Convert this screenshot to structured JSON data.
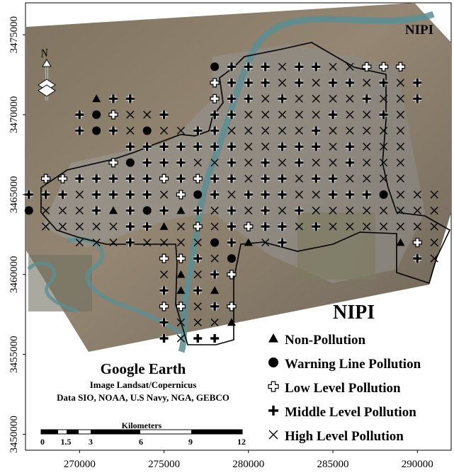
{
  "title_top": "NIPI",
  "legend": {
    "title": "NIPI",
    "items": [
      {
        "symbol": "triangle",
        "label": "Non-Pollution"
      },
      {
        "symbol": "circle",
        "label": "Warning Line Pollution"
      },
      {
        "symbol": "cross-open",
        "label": "Low Level Pollution"
      },
      {
        "symbol": "cross",
        "label": "Middle Level Pollution"
      },
      {
        "symbol": "x",
        "label": "High Level Pollution"
      }
    ]
  },
  "credits": {
    "heading": "Google Earth",
    "line1": "Image Landsat/Copernicus",
    "line2": "Data SIO, NOAA, U.S Navy, NGA, GEBCO"
  },
  "scalebar": {
    "title": "Kilometers",
    "ticks": [
      "0",
      "1.5",
      "3",
      "6",
      "9",
      "12"
    ]
  },
  "north_label": "N",
  "x_ticks": [
    "270000",
    "275000",
    "280000",
    "285000",
    "290000"
  ],
  "y_ticks": [
    "3475000",
    "3470000",
    "3465000",
    "3460000",
    "3455000",
    "3450000"
  ],
  "colors": {
    "symbol": "#000000",
    "symbol_outline": "#ffffff",
    "boundary": "#000000",
    "land": "#8a7c66",
    "urban": "#9c9c9c",
    "river": "#4f7f8a"
  },
  "chart_data": {
    "type": "scatter",
    "note": "sampling points classified by NIPI pollution level",
    "categories": [
      "triangle",
      "circle",
      "cross-open",
      "cross",
      "x"
    ],
    "xlim": [
      266800,
      292000
    ],
    "ylim": [
      3449000,
      3477000
    ],
    "spacing_m": 1000,
    "rows": [
      {
        "y": 3473000,
        "cells": [
          "",
          "",
          "",
          "",
          "",
          "",
          "",
          "",
          "",
          "",
          "",
          "o",
          "+",
          "+",
          "+",
          "x",
          "+",
          "+",
          "x",
          "x",
          "c",
          "c",
          "c",
          "",
          ""
        ]
      },
      {
        "y": 3472000,
        "cells": [
          "",
          "",
          "",
          "",
          "",
          "",
          "",
          "",
          "",
          "",
          "",
          "c",
          "+",
          "+",
          "+",
          "x",
          "+",
          "x",
          "+",
          "+",
          "x",
          "+",
          "x",
          "+",
          ""
        ]
      },
      {
        "y": 3471000,
        "cells": [
          "",
          "",
          "",
          "",
          "t",
          "+",
          "+",
          "",
          "",
          "",
          "",
          "c",
          "+",
          "+",
          "x",
          "+",
          "x",
          "x",
          "x",
          "x",
          "+",
          "x",
          "x",
          "+",
          ""
        ]
      },
      {
        "y": 3470000,
        "cells": [
          "",
          "",
          "",
          "+",
          "o",
          "c",
          "x",
          "x",
          "+",
          "",
          "",
          "+",
          "+",
          "x",
          "x",
          "x",
          "x",
          "x",
          "+",
          "x",
          "x",
          "+",
          "x",
          "",
          ""
        ]
      },
      {
        "y": 3469000,
        "cells": [
          "",
          "",
          "",
          "+",
          "o",
          "+",
          "x",
          "o",
          "x",
          "x",
          "+",
          "+",
          "x",
          "x",
          "x",
          "x",
          "x",
          "+",
          "x",
          "x",
          "x",
          "x",
          "x",
          "",
          ""
        ]
      },
      {
        "y": 3468000,
        "cells": [
          "",
          "",
          "",
          "",
          "",
          "",
          "+",
          "+",
          "+",
          "+",
          "+",
          "+",
          "+",
          "x",
          "x",
          "+",
          "+",
          "+",
          "x",
          "+",
          "x",
          "x",
          "x",
          "",
          ""
        ]
      },
      {
        "y": 3467000,
        "cells": [
          "",
          "",
          "",
          "",
          "",
          "c",
          "o",
          "+",
          "+",
          "+",
          "x",
          "x",
          "+",
          "x",
          "+",
          "x",
          "+",
          "x",
          "x",
          "+",
          "x",
          "x",
          "x",
          "",
          ""
        ]
      },
      {
        "y": 3466000,
        "cells": [
          "",
          "c",
          "c",
          "+",
          "+",
          "+",
          "+",
          "+",
          "c",
          "+",
          "c",
          "+",
          "+",
          "x",
          "+",
          "+",
          "x",
          "+",
          "+",
          "x",
          "x",
          "x",
          "x",
          "",
          ""
        ]
      },
      {
        "y": 3465000,
        "cells": [
          "+",
          "+",
          "+",
          "x",
          "+",
          "+",
          "+",
          "+",
          "x",
          "c",
          "o",
          "+",
          "x",
          "+",
          "+",
          "+",
          "x",
          "x",
          "+",
          "+",
          "+",
          "o",
          "x",
          "x",
          "x"
        ]
      },
      {
        "y": 3464000,
        "cells": [
          "o",
          "x",
          "x",
          "x",
          "+",
          "t",
          "+",
          "o",
          "+",
          "t",
          "+",
          "x",
          "+",
          "x",
          "+",
          "x",
          "+",
          "x",
          "x",
          "x",
          "x",
          "x",
          "x",
          "x",
          "x"
        ]
      },
      {
        "y": 3463000,
        "cells": [
          "",
          "x",
          "x",
          "x",
          "x",
          "x",
          "+",
          "+",
          "t",
          "x",
          "c",
          "x",
          "+",
          "c",
          "+",
          "+",
          "x",
          "+",
          "x",
          "x",
          "x",
          "x",
          "x",
          "x",
          "x"
        ]
      },
      {
        "y": 3462000,
        "cells": [
          "",
          "",
          "",
          "x",
          "x",
          "x",
          "+",
          "x",
          "x",
          "x",
          "x",
          "o",
          "+",
          "t",
          "x",
          "+",
          "",
          "",
          "",
          "",
          "",
          "",
          "t",
          "c",
          "x"
        ]
      },
      {
        "y": 3461000,
        "cells": [
          "",
          "",
          "",
          "",
          "",
          "",
          "",
          "",
          "c",
          "c",
          "+",
          "x",
          "o",
          "",
          "",
          "",
          "",
          "",
          "",
          "",
          "",
          "",
          "",
          "+",
          "x"
        ]
      },
      {
        "y": 3460000,
        "cells": [
          "",
          "",
          "",
          "",
          "",
          "",
          "",
          "",
          "x",
          "t",
          "x",
          "+",
          "c",
          "",
          "",
          "",
          "",
          "",
          "",
          "",
          "",
          "",
          "",
          "",
          ""
        ]
      },
      {
        "y": 3459000,
        "cells": [
          "",
          "",
          "",
          "",
          "",
          "",
          "",
          "",
          "+",
          "t",
          "+",
          "t",
          "",
          "",
          "",
          "",
          "",
          "",
          "",
          "",
          "",
          "",
          "",
          "",
          ""
        ]
      },
      {
        "y": 3458000,
        "cells": [
          "",
          "",
          "",
          "",
          "",
          "",
          "",
          "",
          "c",
          "c",
          "x",
          "+",
          "c",
          "",
          "",
          "",
          "",
          "",
          "",
          "",
          "",
          "",
          "",
          "",
          ""
        ]
      },
      {
        "y": 3457000,
        "cells": [
          "",
          "",
          "",
          "",
          "",
          "",
          "",
          "",
          "+",
          "x",
          "x",
          "x",
          "t",
          "",
          "",
          "",
          "",
          "",
          "",
          "",
          "",
          "",
          "",
          "",
          ""
        ]
      },
      {
        "y": 3456000,
        "cells": [
          "",
          "",
          "",
          "",
          "",
          "",
          "",
          "",
          "+",
          "x",
          "+",
          "+",
          "",
          "",
          "",
          "",
          "",
          "",
          "",
          "",
          "",
          "",
          "",
          "",
          ""
        ]
      }
    ],
    "x_start": 267000
  }
}
